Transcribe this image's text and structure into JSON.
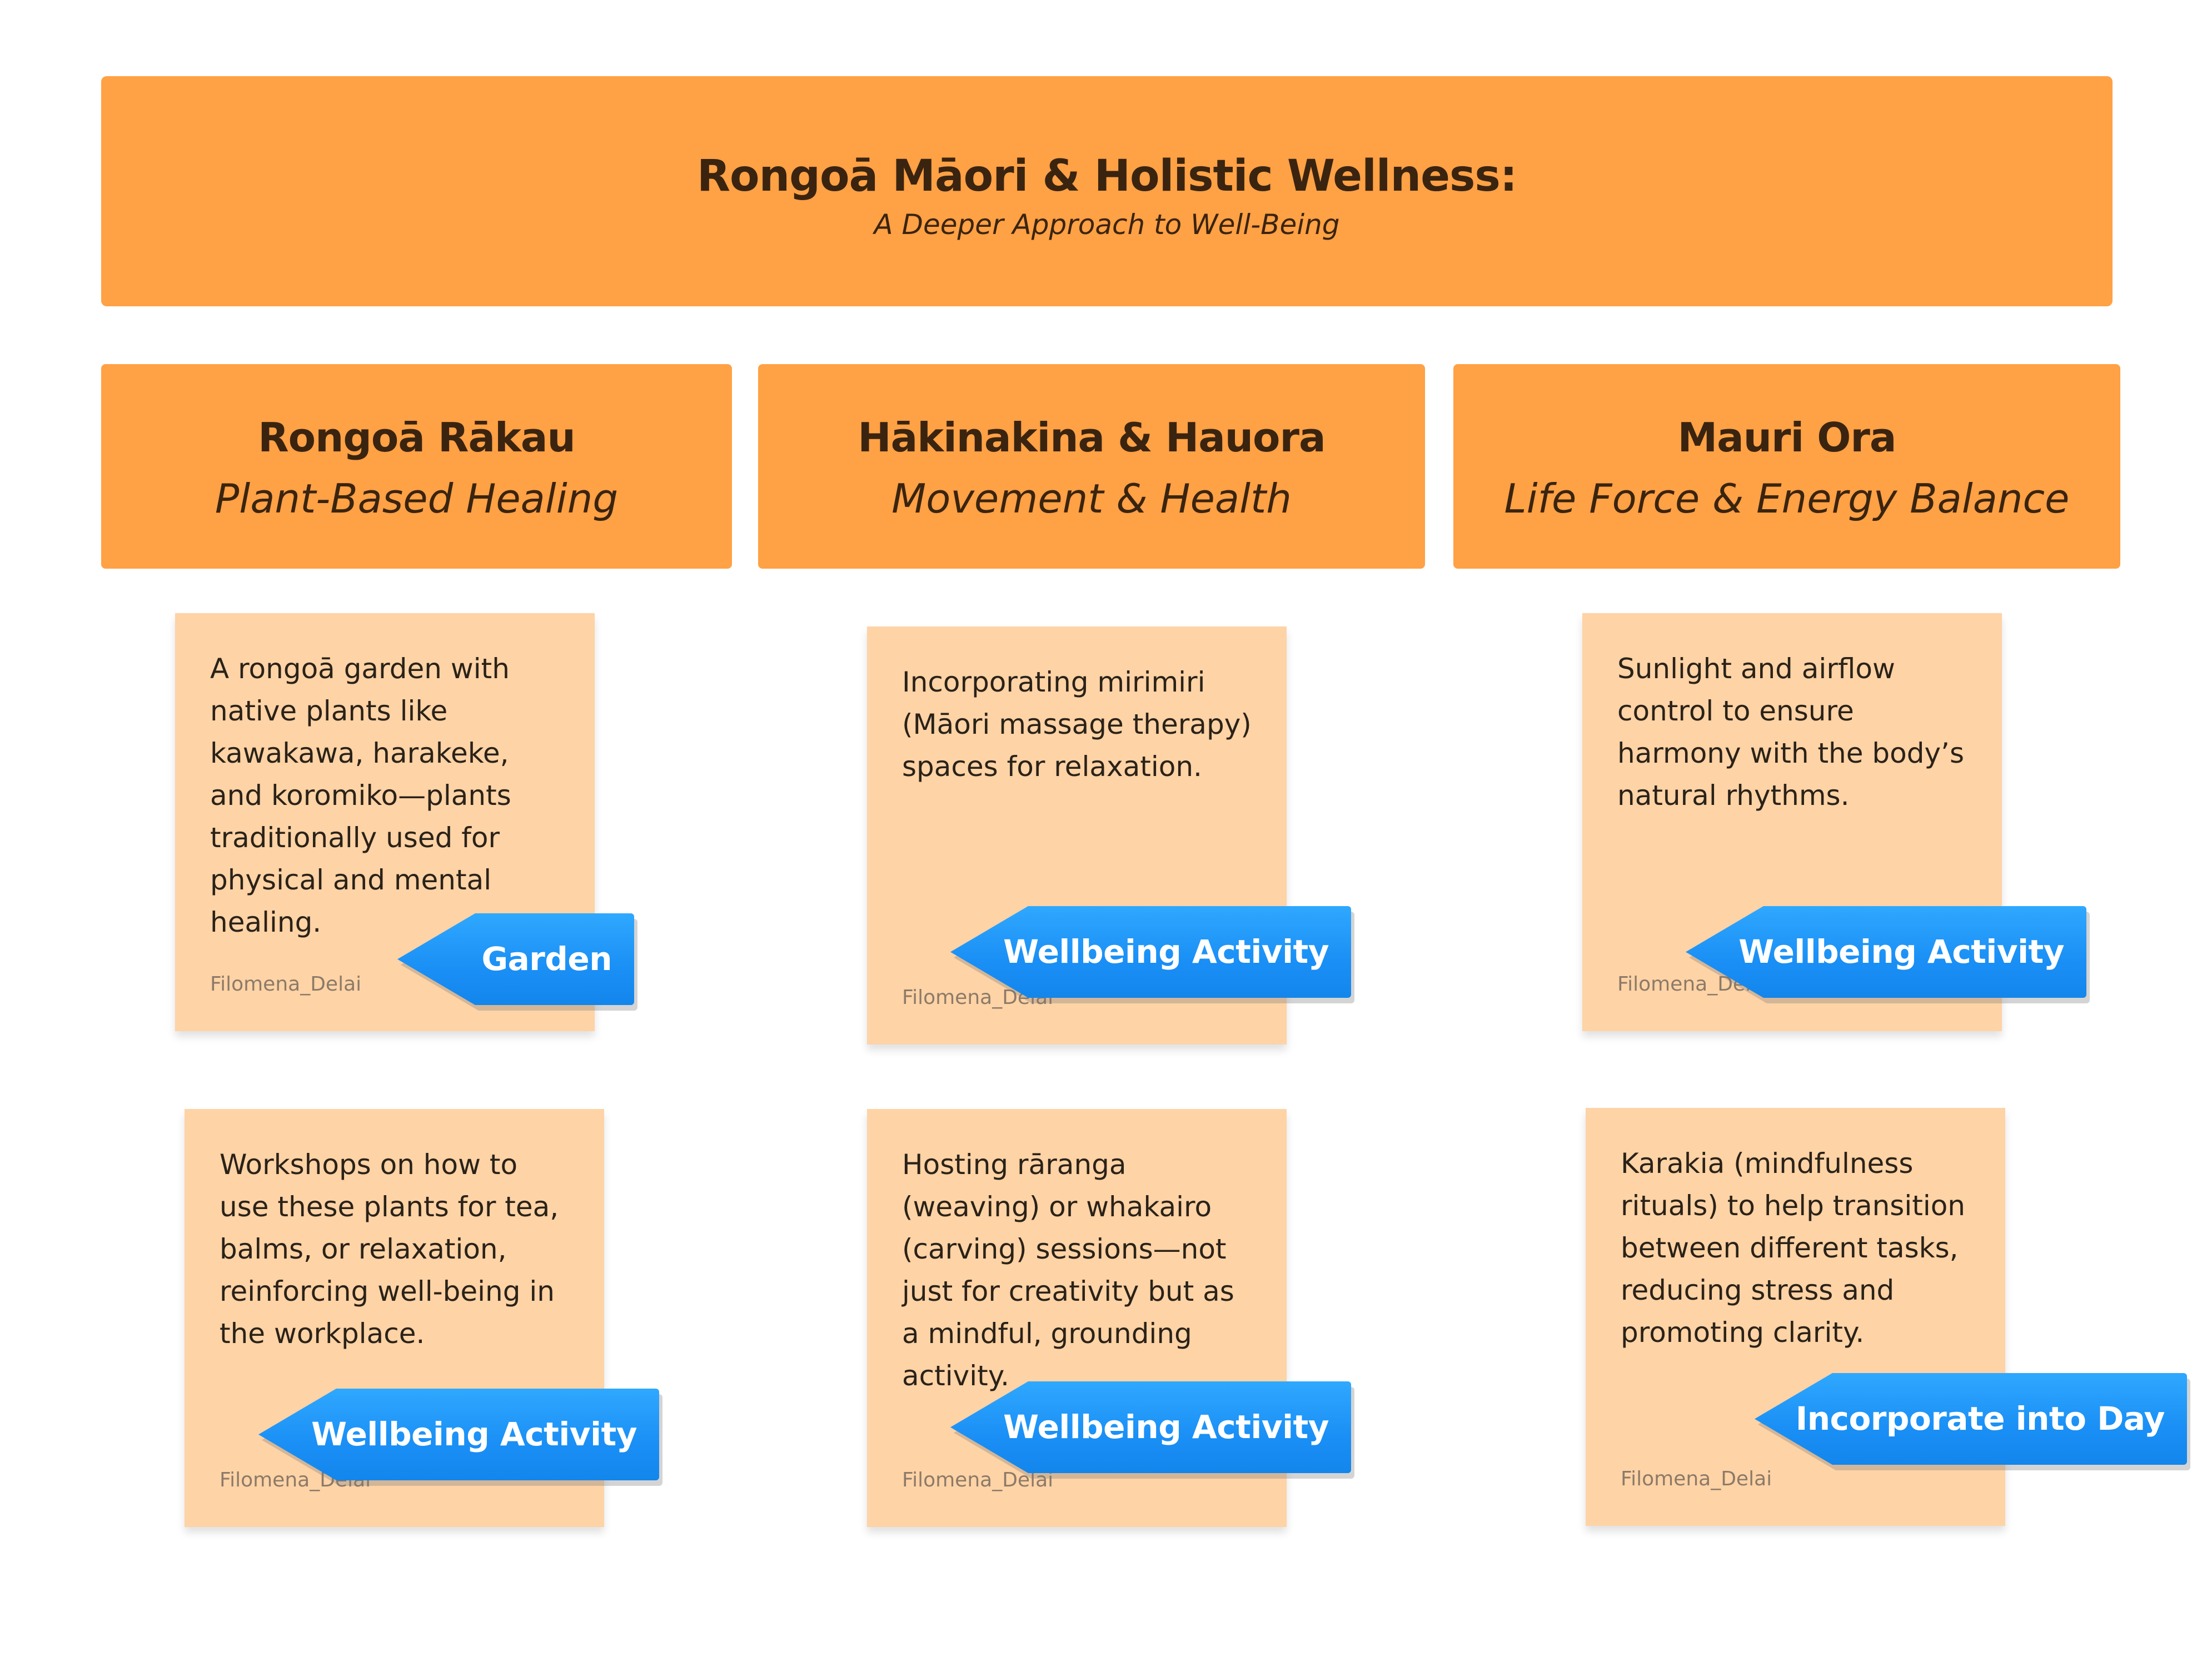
{
  "banner": {
    "title": "Rongoā Māori & Holistic Wellness:",
    "subtitle": "A Deeper Approach to Well-Being"
  },
  "columns": [
    {
      "title": "Rongoā Rākau",
      "subtitle": "Plant-Based Healing",
      "notes": [
        {
          "text": "A rongoā garden with native plants like kawakawa, harakeke, and koromiko—plants traditionally used for physical and mental healing.",
          "author": "Filomena_Delai",
          "tag": "Garden"
        },
        {
          "text": "Workshops on how to use these plants for tea, balms, or relaxation, reinforcing well-being in the workplace.",
          "author": "Filomena_Delai",
          "tag": "Wellbeing Activity"
        }
      ]
    },
    {
      "title": "Hākinakina & Hauora",
      "subtitle": "Movement & Health",
      "notes": [
        {
          "text": "Incorporating mirimiri (Māori massage therapy) spaces for relaxation.",
          "author": "Filomena_Delai",
          "tag": "Wellbeing Activity"
        },
        {
          "text": "Hosting rāranga (weaving) or whakairo (carving) sessions—not just for creativity but as a mindful, grounding activity.",
          "author": "Filomena_Delai",
          "tag": "Wellbeing Activity"
        }
      ]
    },
    {
      "title": "Mauri Ora",
      "subtitle": "Life Force & Energy Balance",
      "notes": [
        {
          "text": "Sunlight and airflow control to ensure harmony with the body’s natural rhythms.",
          "author": "Filomena_Delai",
          "tag": "Wellbeing Activity"
        },
        {
          "text": "Karakia (mindfulness rituals) to help transition between different tasks, reducing stress and promoting clarity.",
          "author": "Filomena_Delai",
          "tag": "Incorporate into Day"
        }
      ]
    }
  ],
  "colors": {
    "header_orange": "#FFA145",
    "note_peach": "#FED3A6",
    "tag_blue": "#1A8FF5"
  }
}
